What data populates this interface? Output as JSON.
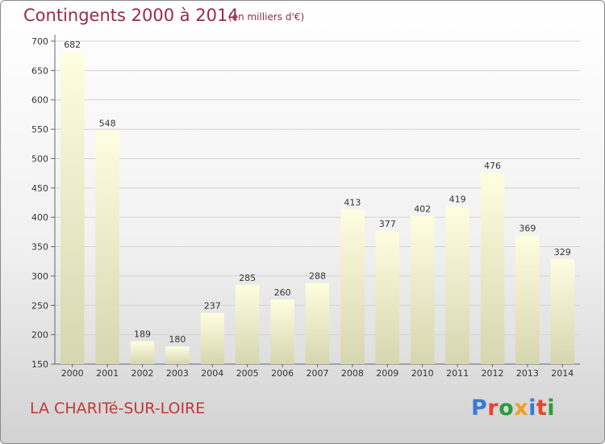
{
  "header": {
    "title": "Contingents 2000 à 2014",
    "subtitle": "(en milliers d'€)"
  },
  "footer": {
    "town": "LA CHARITé-SUR-LOIRE",
    "logo_text": "Proxiti",
    "logo_colors": [
      "#3a7bd5",
      "#e8442d",
      "#2a9d3a",
      "#f0a020",
      "#3a7bd5",
      "#e8442d",
      "#2a9d3a"
    ]
  },
  "colors": {
    "bar_top": "#fefee0",
    "bar_bottom": "#d6d6b0",
    "axis": "#666666",
    "grid": "#d4d4d4",
    "text": "#333333"
  },
  "chart_data": {
    "type": "bar",
    "categories": [
      "2000",
      "2001",
      "2002",
      "2003",
      "2004",
      "2005",
      "2006",
      "2007",
      "2008",
      "2009",
      "2010",
      "2011",
      "2012",
      "2013",
      "2014"
    ],
    "values": [
      682,
      548,
      189,
      180,
      237,
      285,
      260,
      288,
      413,
      377,
      402,
      419,
      476,
      369,
      329
    ],
    "ylim": [
      150,
      700
    ],
    "yticks": [
      150,
      200,
      250,
      300,
      350,
      400,
      450,
      500,
      550,
      600,
      650,
      700
    ],
    "grid": true,
    "xlabel": "",
    "ylabel": ""
  }
}
